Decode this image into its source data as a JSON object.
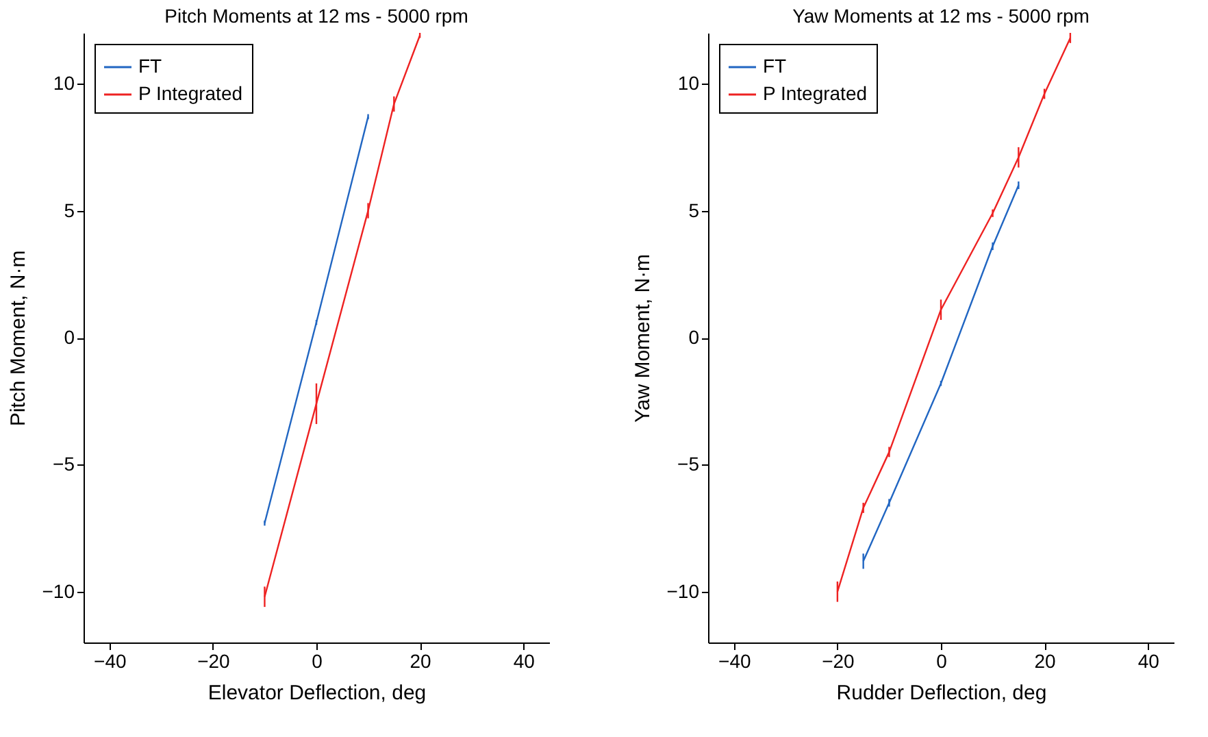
{
  "chart_data": [
    {
      "type": "line",
      "title": "Pitch Moments at 12 ms - 5000 rpm",
      "xlabel": "Elevator Deflection, deg",
      "ylabel": "Pitch Moment, N·m",
      "xlim": [
        -45,
        45
      ],
      "xticks": [
        -40,
        -20,
        0,
        20,
        40
      ],
      "ylim": [
        -12,
        12
      ],
      "yticks": [
        -10,
        -5,
        0,
        5,
        10
      ],
      "grid": false,
      "legend": "top left",
      "series": [
        {
          "name": "FT",
          "color": "#2166c2",
          "x": [
            -10,
            0,
            10
          ],
          "values": [
            -7.3,
            0.6,
            8.7
          ],
          "errors": [
            0.1,
            0.1,
            0.1
          ]
        },
        {
          "name": "P Integrated",
          "color": "#ee2222",
          "x": [
            -10,
            0,
            10,
            15,
            20
          ],
          "values": [
            -10.2,
            -2.6,
            5.0,
            9.2,
            11.9
          ],
          "errors": [
            0.4,
            0.8,
            0.3,
            0.3,
            0.1
          ]
        }
      ]
    },
    {
      "type": "line",
      "title": "Yaw Moments at 12 ms - 5000 rpm",
      "xlabel": "Rudder Deflection, deg",
      "ylabel": "Yaw Moment, N·m",
      "xlim": [
        -45,
        45
      ],
      "xticks": [
        -40,
        -20,
        0,
        20,
        40
      ],
      "ylim": [
        -12,
        12
      ],
      "yticks": [
        -10,
        -5,
        0,
        5,
        10
      ],
      "grid": false,
      "legend": "top left",
      "series": [
        {
          "name": "FT",
          "color": "#2166c2",
          "x": [
            -15,
            -10,
            0,
            10,
            15
          ],
          "values": [
            -8.8,
            -6.5,
            -1.8,
            3.6,
            6.0
          ],
          "errors": [
            0.3,
            0.15,
            0.1,
            0.15,
            0.15
          ]
        },
        {
          "name": "P Integrated",
          "color": "#ee2222",
          "x": [
            -20,
            -15,
            -10,
            0,
            10,
            15,
            20,
            25
          ],
          "values": [
            -10.0,
            -6.7,
            -4.5,
            1.1,
            4.9,
            7.1,
            9.6,
            11.8
          ],
          "errors": [
            0.4,
            0.2,
            0.2,
            0.4,
            0.15,
            0.4,
            0.2,
            0.2
          ]
        }
      ]
    }
  ]
}
